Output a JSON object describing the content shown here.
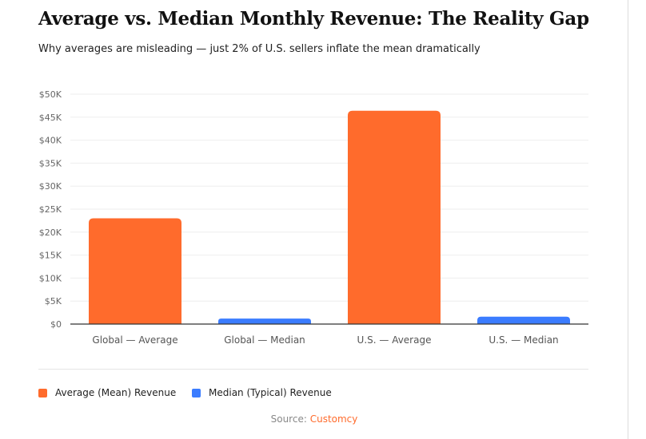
{
  "title": "Average vs. Median Monthly Revenue: The Reality Gap",
  "subtitle": "Why averages are misleading — just 2% of U.S. sellers inflate the mean dramatically",
  "chart_data": {
    "type": "bar",
    "categories": [
      "Global — Average",
      "Global — Median",
      "U.S. — Average",
      "U.S. — Median"
    ],
    "values": [
      23000,
      1200,
      46400,
      1600
    ],
    "bar_series": [
      "Average (Mean) Revenue",
      "Median (Typical) Revenue",
      "Average (Mean) Revenue",
      "Median (Typical) Revenue"
    ],
    "ylim": [
      0,
      50000
    ],
    "yticks": [
      0,
      5000,
      10000,
      15000,
      20000,
      25000,
      30000,
      35000,
      40000,
      45000,
      50000
    ],
    "ytick_labels": [
      "$0",
      "$5K",
      "$10K",
      "$15K",
      "$20K",
      "$25K",
      "$30K",
      "$35K",
      "$40K",
      "$45K",
      "$50K"
    ],
    "grid": true,
    "legend_position": "bottom-left",
    "legend": [
      {
        "name": "Average (Mean) Revenue",
        "color": "#ff6b2c"
      },
      {
        "name": "Median (Typical) Revenue",
        "color": "#3b7cff"
      }
    ]
  },
  "source": {
    "label": "Source:",
    "name": "Customcy"
  }
}
